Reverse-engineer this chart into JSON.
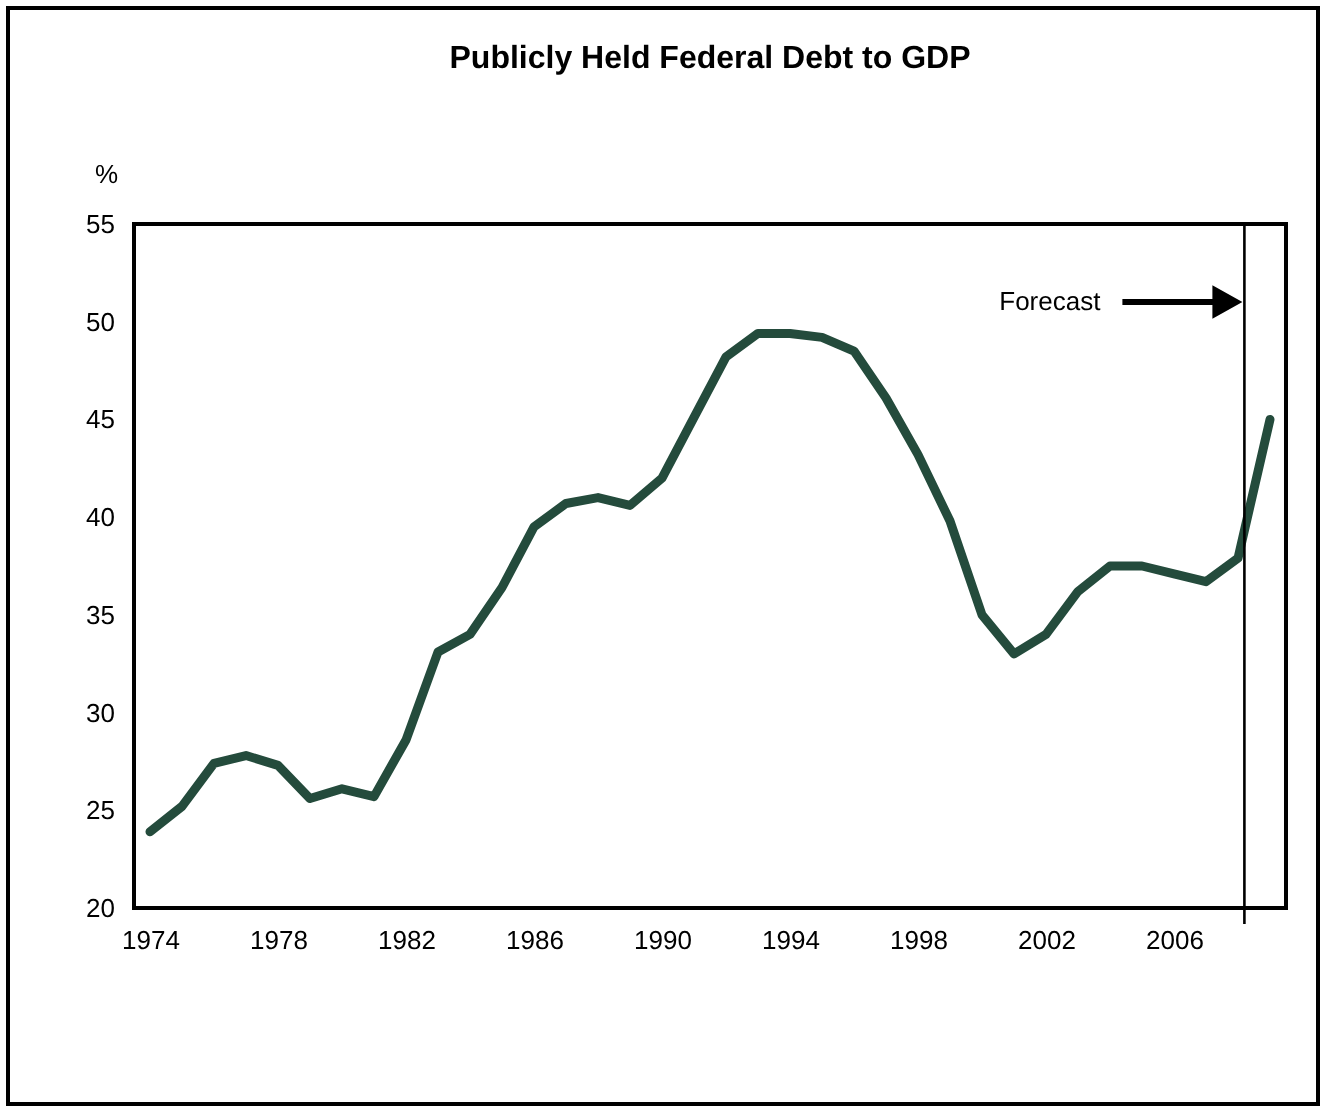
{
  "chart_data": {
    "type": "line",
    "title": "Publicly Held Federal Debt to GDP",
    "ylabel": "%",
    "x": [
      1974,
      1975,
      1976,
      1977,
      1978,
      1979,
      1980,
      1981,
      1982,
      1983,
      1984,
      1985,
      1986,
      1987,
      1988,
      1989,
      1990,
      1991,
      1992,
      1993,
      1994,
      1995,
      1996,
      1997,
      1998,
      1999,
      2000,
      2001,
      2002,
      2003,
      2004,
      2005,
      2006,
      2007,
      2008,
      2009
    ],
    "series": [
      {
        "color": "#244b3c",
        "values": [
          23.9,
          25.2,
          27.4,
          27.8,
          27.3,
          25.6,
          26.1,
          25.7,
          28.6,
          33.1,
          34.0,
          36.4,
          39.5,
          40.7,
          41.0,
          40.6,
          42.0,
          45.1,
          48.2,
          49.4,
          49.4,
          49.2,
          48.5,
          46.1,
          43.2,
          39.8,
          35.0,
          33.0,
          34.0,
          36.2,
          37.5,
          37.5,
          37.1,
          36.7,
          37.9,
          45.0
        ]
      }
    ],
    "xlim": [
      1973.5,
      2009.5
    ],
    "xticks": [
      1974,
      1978,
      1982,
      1986,
      1990,
      1994,
      1998,
      2002,
      2006
    ],
    "ylim": [
      20,
      55
    ],
    "yticks": [
      20,
      25,
      30,
      35,
      40,
      45,
      50,
      55
    ],
    "ref_lines": [
      {
        "axis": "x",
        "value": 2008.2,
        "label": "Forecast",
        "color": "#000000"
      }
    ],
    "line_style": "solid"
  }
}
